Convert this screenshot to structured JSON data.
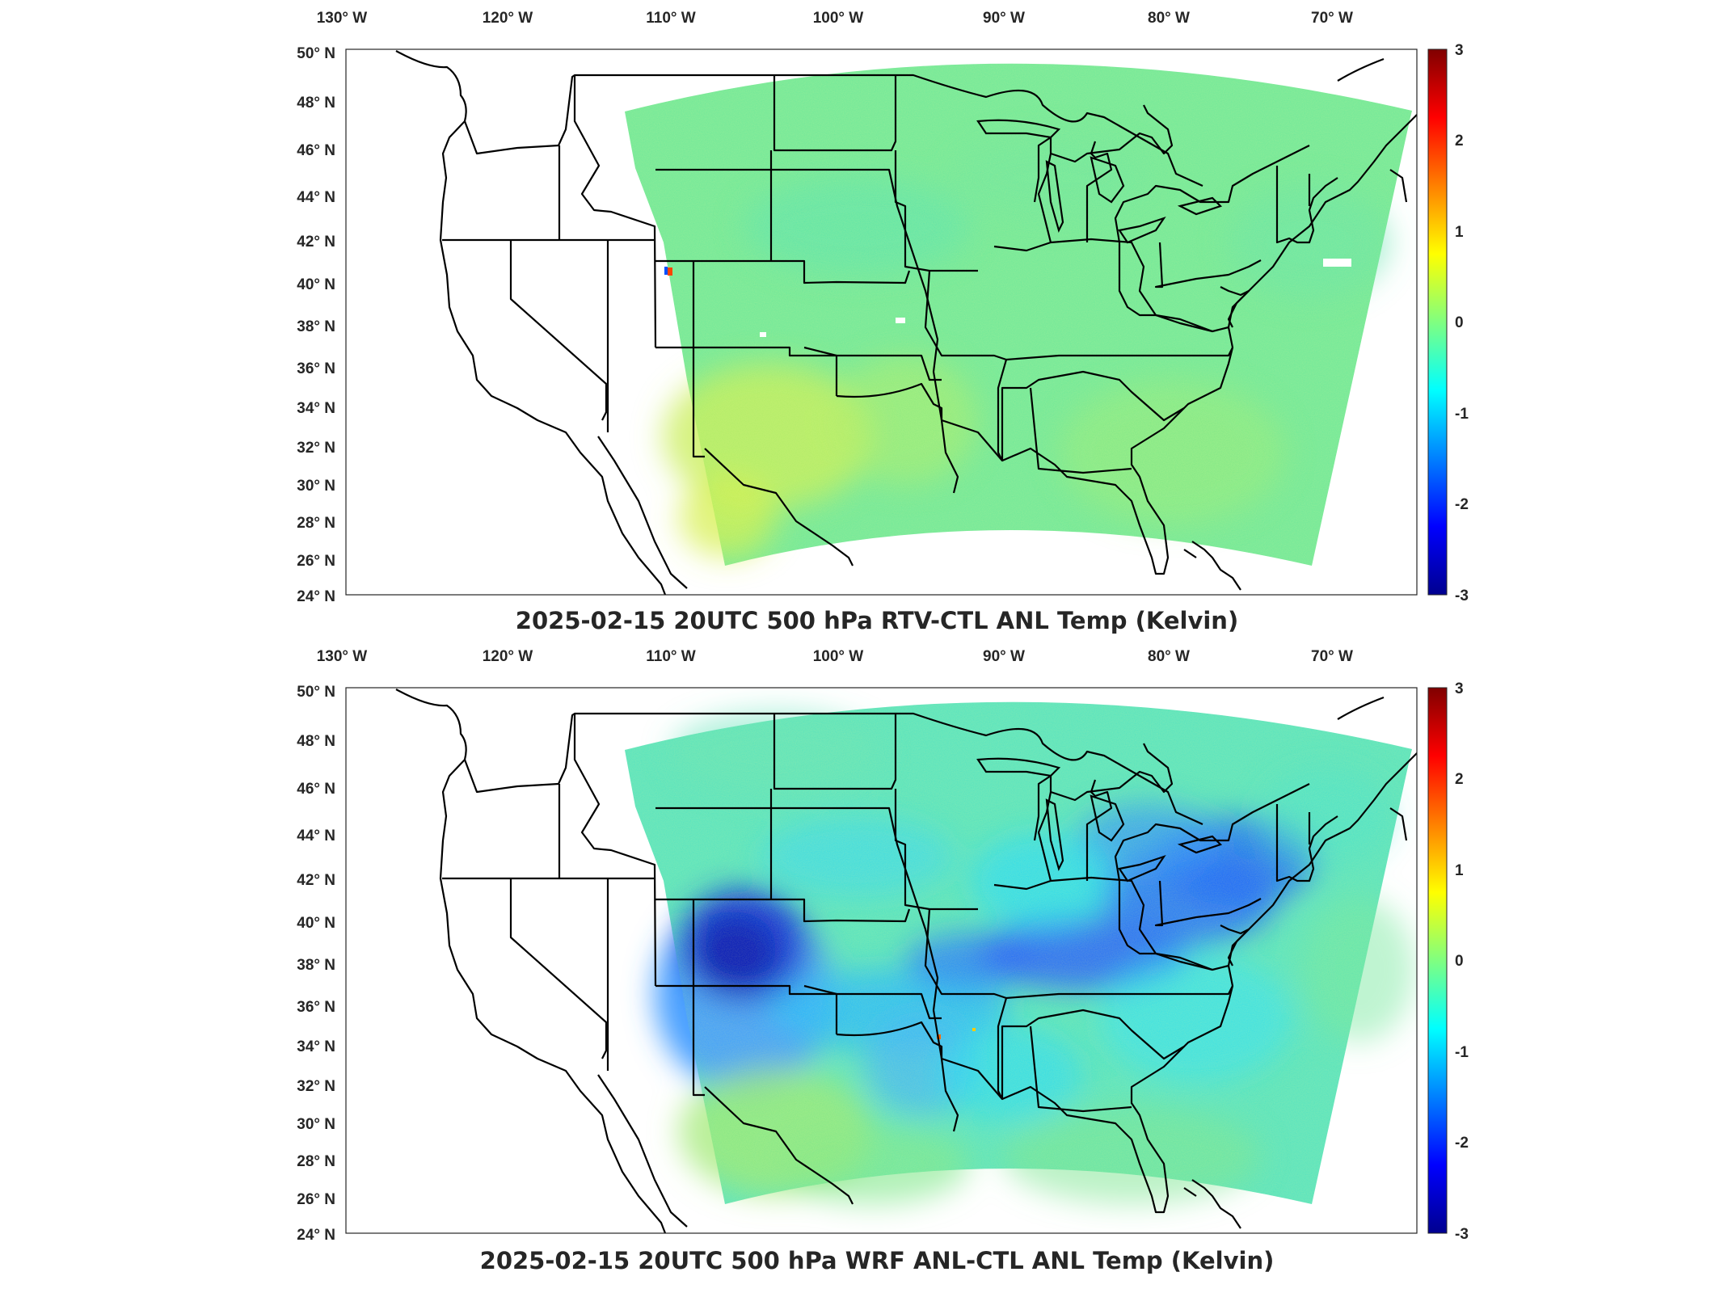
{
  "colormap": [
    "#00008f",
    "#0000ff",
    "#0080ff",
    "#00ffff",
    "#80ff80",
    "#ffff00",
    "#ff8000",
    "#ff0000",
    "#800000"
  ],
  "panels": [
    {
      "title": "2025-02-15 20UTC 500 hPa RTV-CTL ANL Temp (Kelvin)",
      "lon_ticks": [
        "130° W",
        "120° W",
        "110° W",
        "100° W",
        "90° W",
        "80° W",
        "70° W"
      ],
      "lat_ticks": [
        "50° N",
        "48° N",
        "46° N",
        "44° N",
        "42° N",
        "40° N",
        "38° N",
        "36° N",
        "34° N",
        "32° N",
        "30° N",
        "28° N",
        "26° N",
        "24° N"
      ],
      "colorbar_ticks": [
        "3",
        "2",
        "1",
        "0",
        "-1",
        "-2",
        "-3"
      ],
      "colorbar_range": [
        -3,
        3
      ],
      "field_anomalies": [
        {
          "region": "background",
          "value": 0.0
        },
        {
          "region": "southwest texas / new mexico",
          "value": 0.6
        },
        {
          "region": "eastern texas / oklahoma",
          "value": 0.3
        },
        {
          "region": "southeast",
          "value": 0.2
        },
        {
          "region": "northern plains",
          "value": -0.2
        }
      ]
    },
    {
      "title": "2025-02-15 20UTC 500 hPa WRF ANL-CTL ANL Temp (Kelvin)",
      "lon_ticks": [
        "130° W",
        "120° W",
        "110° W",
        "100° W",
        "90° W",
        "80° W",
        "70° W"
      ],
      "lat_ticks": [
        "50° N",
        "48° N",
        "46° N",
        "44° N",
        "42° N",
        "40° N",
        "38° N",
        "36° N",
        "34° N",
        "32° N",
        "30° N",
        "28° N",
        "26° N",
        "24° N"
      ],
      "colorbar_ticks": [
        "3",
        "2",
        "1",
        "0",
        "-1",
        "-2",
        "-3"
      ],
      "colorbar_range": [
        -3,
        3
      ],
      "field_anomalies": [
        {
          "region": "background",
          "value": -0.2
        },
        {
          "region": "colorado",
          "value": -2.5
        },
        {
          "region": "kansas / missouri band",
          "value": -1.6
        },
        {
          "region": "kentucky / ohio valley",
          "value": -2.0
        },
        {
          "region": "pennsylvania / new york",
          "value": -1.8
        },
        {
          "region": "great lakes",
          "value": -1.3
        },
        {
          "region": "oklahoma / east texas",
          "value": -1.2
        },
        {
          "region": "south texas / new mexico",
          "value": 0.3
        }
      ]
    }
  ]
}
